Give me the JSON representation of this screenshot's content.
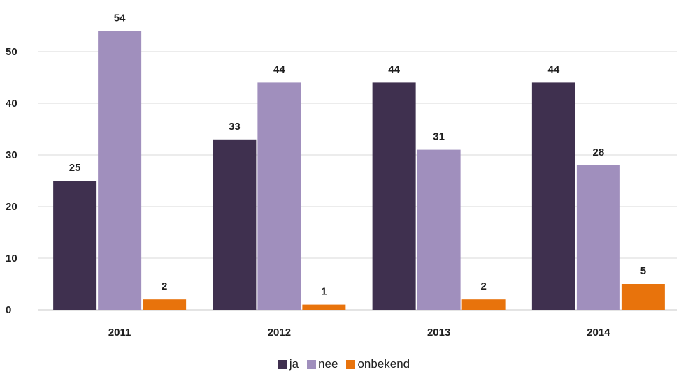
{
  "chart_data": {
    "type": "bar",
    "title": "",
    "categories": [
      "2011",
      "2012",
      "2013",
      "2014"
    ],
    "series": [
      {
        "name": "ja",
        "values": [
          25,
          33,
          44,
          44
        ],
        "color": "#3f304f"
      },
      {
        "name": "nee",
        "values": [
          54,
          44,
          31,
          28
        ],
        "color": "#a08fbd"
      },
      {
        "name": "onbekend",
        "values": [
          2,
          1,
          2,
          5
        ],
        "color": "#e8730c"
      }
    ],
    "ylim": [
      0,
      55
    ],
    "yticks": [
      0,
      10,
      20,
      30,
      40,
      50
    ],
    "xlabel": "",
    "ylabel": "",
    "grid": true,
    "legend_position": "bottom"
  }
}
